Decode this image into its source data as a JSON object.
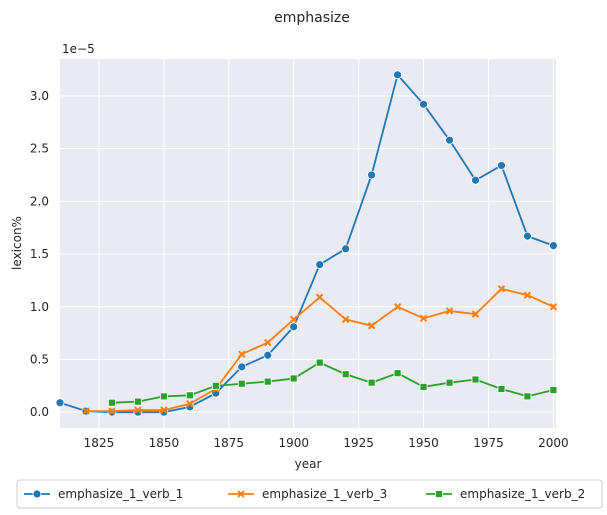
{
  "chart_data": {
    "type": "line",
    "title": "emphasize",
    "xlabel": "year",
    "ylabel": "lexicon%",
    "y_scale_label": "1e−5",
    "xlim": [
      1810,
      2001
    ],
    "ylim": [
      -0.15,
      3.35
    ],
    "x_ticks": [
      1825,
      1850,
      1875,
      1900,
      1925,
      1950,
      1975,
      2000
    ],
    "y_ticks": [
      0.0,
      0.5,
      1.0,
      1.5,
      2.0,
      2.5,
      3.0
    ],
    "x_tick_labels": [
      "1825",
      "1850",
      "1875",
      "1900",
      "1925",
      "1950",
      "1975",
      "2000"
    ],
    "y_tick_labels": [
      "0.0",
      "0.5",
      "1.0",
      "1.5",
      "2.0",
      "2.5",
      "3.0"
    ],
    "grid": true,
    "legend_position": "bottom",
    "series": [
      {
        "name": "emphasize_1_verb_1",
        "color": "#1f77b4",
        "marker": "circle",
        "x": [
          1810,
          1820,
          1830,
          1840,
          1850,
          1860,
          1870,
          1880,
          1890,
          1900,
          1910,
          1920,
          1930,
          1940,
          1950,
          1960,
          1970,
          1980,
          1990,
          2000
        ],
        "y": [
          0.09,
          0.01,
          0.0,
          0.0,
          0.0,
          0.05,
          0.18,
          0.43,
          0.54,
          0.81,
          1.4,
          1.55,
          2.25,
          3.2,
          2.92,
          2.58,
          2.2,
          2.34,
          1.67,
          1.58
        ]
      },
      {
        "name": "emphasize_1_verb_3",
        "color": "#ff7f0e",
        "marker": "x",
        "x": [
          1820,
          1830,
          1840,
          1850,
          1860,
          1870,
          1880,
          1890,
          1900,
          1910,
          1920,
          1930,
          1940,
          1950,
          1960,
          1970,
          1980,
          1990,
          2000
        ],
        "y": [
          0.01,
          0.01,
          0.02,
          0.02,
          0.08,
          0.22,
          0.55,
          0.66,
          0.88,
          1.09,
          0.88,
          0.82,
          1.0,
          0.89,
          0.96,
          0.93,
          1.17,
          1.11,
          1.0
        ]
      },
      {
        "name": "emphasize_1_verb_2",
        "color": "#2ca02c",
        "marker": "square",
        "x": [
          1830,
          1840,
          1850,
          1860,
          1870,
          1880,
          1890,
          1900,
          1910,
          1920,
          1930,
          1940,
          1950,
          1960,
          1970,
          1980,
          1990,
          2000
        ],
        "y": [
          0.09,
          0.1,
          0.15,
          0.16,
          0.25,
          0.27,
          0.29,
          0.32,
          0.47,
          0.36,
          0.28,
          0.37,
          0.24,
          0.28,
          0.31,
          0.22,
          0.15,
          0.21
        ]
      }
    ]
  }
}
